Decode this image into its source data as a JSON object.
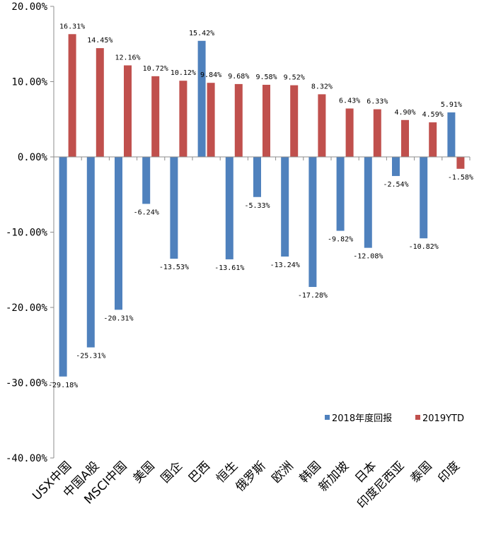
{
  "chart_data": {
    "type": "bar",
    "categories": [
      "USX中国",
      "中国A股",
      "MSCI中国",
      "美国",
      "国企",
      "巴西",
      "恒生",
      "俄罗斯",
      "欧洲",
      "韩国",
      "新加坡",
      "日本",
      "印度尼西亚",
      "泰国",
      "印度"
    ],
    "series": [
      {
        "name": "2018年度回报",
        "color": "#4F81BD",
        "values": [
          -29.18,
          -25.31,
          -20.31,
          -6.24,
          -13.53,
          15.42,
          -13.61,
          -5.33,
          -13.24,
          -17.28,
          -9.82,
          -12.08,
          -2.54,
          -10.82,
          5.91
        ],
        "labels": [
          "-29.18%",
          "-25.31%",
          "-20.31%",
          "-6.24%",
          "-13.53%",
          "15.42%",
          "-13.61%",
          "-5.33%",
          "-13.24%",
          "-17.28%",
          "-9.82%",
          "-12.08%",
          "-2.54%",
          "-10.82%",
          "5.91%"
        ]
      },
      {
        "name": "2019YTD",
        "color": "#C0504D",
        "values": [
          16.31,
          14.45,
          12.16,
          10.72,
          10.12,
          9.84,
          9.68,
          9.58,
          9.52,
          8.32,
          6.43,
          6.33,
          4.9,
          4.59,
          -1.58
        ],
        "labels": [
          "16.31%",
          "14.45%",
          "12.16%",
          "10.72%",
          "10.12%",
          "9.84%",
          "9.68%",
          "9.58%",
          "9.52%",
          "8.32%",
          "6.43%",
          "6.33%",
          "4.90%",
          "4.59%",
          "-1.58%"
        ]
      }
    ],
    "y_ticks": [
      20,
      10,
      0,
      -10,
      -20,
      -30,
      -40
    ],
    "y_tick_labels": [
      "20.00%",
      "10.00%",
      "0.00%",
      "-10.00%",
      "-20.00%",
      "-30.00%",
      "-40.00%"
    ],
    "ylim": [
      -40,
      20
    ],
    "grid": false,
    "legend_position": "bottom-right",
    "title": "",
    "xlabel": "",
    "ylabel": ""
  }
}
